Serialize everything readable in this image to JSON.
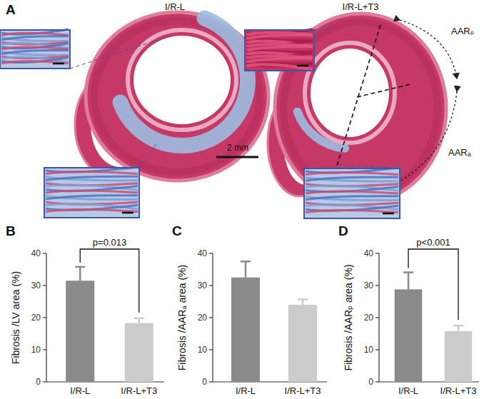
{
  "panel_a": {
    "label": "A",
    "panels": [
      {
        "title": "I/R-L"
      },
      {
        "title": "I/R-L+T3"
      }
    ],
    "regions": [
      "AARₚ",
      "AARₐ"
    ],
    "scale_bar": "2 mm"
  },
  "chart_data": [
    {
      "type": "bar",
      "title": "B",
      "ylabel": "Fibrosis /LV area (%)",
      "categories": [
        "I/R-L",
        "I/R-L+T3"
      ],
      "values": [
        31.5,
        18.3
      ],
      "errors": [
        4.3,
        1.5
      ],
      "colors": [
        "#8a8a8a",
        "#cbcbcb"
      ],
      "ylim": [
        0,
        40
      ],
      "yticks": [
        0,
        10,
        20,
        30,
        40
      ],
      "annotation": "p=0.013"
    },
    {
      "type": "bar",
      "title": "C",
      "ylabel": "Fibrosis /AARₐ area (%)",
      "categories": [
        "I/R-L",
        "I/R-L+T3"
      ],
      "values": [
        32.5,
        24.0
      ],
      "errors": [
        5.0,
        1.7
      ],
      "colors": [
        "#8a8a8a",
        "#cbcbcb"
      ],
      "ylim": [
        0,
        40
      ],
      "yticks": [
        0,
        10,
        20,
        30,
        40
      ]
    },
    {
      "type": "bar",
      "title": "D",
      "ylabel": "Fibrosis /AARₚ area (%)",
      "categories": [
        "I/R-L",
        "I/R-L+T3"
      ],
      "values": [
        28.8,
        15.8
      ],
      "errors": [
        5.3,
        1.7
      ],
      "colors": [
        "#8a8a8a",
        "#cbcbcb"
      ],
      "ylim": [
        0,
        40
      ],
      "yticks": [
        0,
        10,
        20,
        30,
        40
      ],
      "annotation": "p<0.001"
    }
  ]
}
